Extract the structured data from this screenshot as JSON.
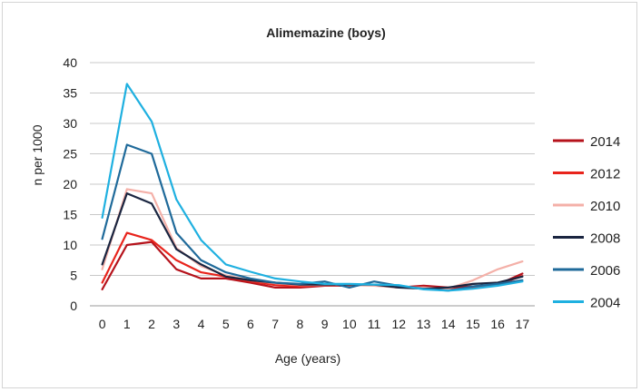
{
  "chart_data": {
    "type": "line",
    "title": "Alimemazine (boys)",
    "xlabel": "Age (years)",
    "ylabel": "n per 1000",
    "ylim": [
      0,
      40
    ],
    "yticks": [
      0,
      5,
      10,
      15,
      20,
      25,
      30,
      35,
      40
    ],
    "x": [
      0,
      1,
      2,
      3,
      4,
      5,
      6,
      7,
      8,
      9,
      10,
      11,
      12,
      13,
      14,
      15,
      16,
      17
    ],
    "grid": "horizontal",
    "legend_position": "right",
    "series": [
      {
        "name": "2014",
        "color": "#b5121b",
        "values": [
          2.7,
          10.0,
          10.5,
          6.0,
          4.5,
          4.5,
          3.8,
          3.0,
          3.0,
          3.3,
          3.3,
          3.5,
          3.0,
          3.3,
          3.0,
          3.2,
          3.5,
          5.3
        ]
      },
      {
        "name": "2012",
        "color": "#e8241c",
        "values": [
          3.8,
          12.0,
          10.8,
          7.5,
          5.5,
          4.8,
          4.0,
          3.4,
          3.2,
          3.5,
          3.4,
          3.4,
          3.0,
          3.0,
          2.7,
          3.0,
          3.5,
          4.9
        ]
      },
      {
        "name": "2010",
        "color": "#f4b0a8",
        "values": [
          6.0,
          19.2,
          18.5,
          9.5,
          6.5,
          5.0,
          4.2,
          3.7,
          3.4,
          3.4,
          3.4,
          3.3,
          3.0,
          3.0,
          2.8,
          4.2,
          6.0,
          7.3
        ]
      },
      {
        "name": "2008",
        "color": "#1a2540",
        "values": [
          6.8,
          18.5,
          16.8,
          9.3,
          6.8,
          4.8,
          4.2,
          3.8,
          3.5,
          3.5,
          3.5,
          3.5,
          3.0,
          2.8,
          3.0,
          3.6,
          3.8,
          4.8
        ]
      },
      {
        "name": "2006",
        "color": "#1f6a9a",
        "values": [
          11.0,
          26.5,
          25.0,
          12.0,
          7.5,
          5.5,
          4.5,
          3.8,
          3.6,
          4.0,
          3.0,
          4.0,
          3.3,
          2.8,
          2.5,
          3.2,
          3.6,
          4.2
        ]
      },
      {
        "name": "2004",
        "color": "#1fb0e0",
        "values": [
          14.5,
          36.5,
          30.3,
          17.5,
          10.8,
          6.8,
          5.6,
          4.5,
          4.0,
          3.6,
          3.6,
          3.5,
          3.4,
          2.7,
          2.5,
          2.8,
          3.3,
          4.0
        ]
      }
    ]
  }
}
